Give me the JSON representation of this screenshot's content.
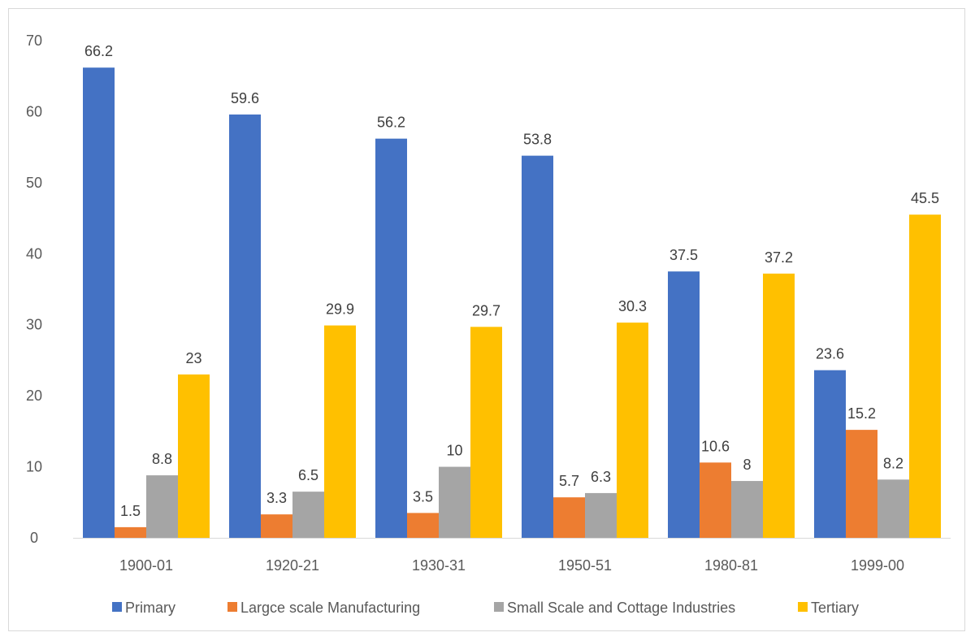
{
  "chart_data": {
    "type": "bar",
    "title": "",
    "xlabel": "",
    "ylabel": "",
    "categories": [
      "1900-01",
      "1920-21",
      "1930-31",
      "1950-51",
      "1980-81",
      "1999-00"
    ],
    "series": [
      {
        "name": "Primary",
        "color": "#4472C4",
        "values": [
          66.2,
          59.6,
          56.2,
          53.8,
          37.5,
          23.6
        ]
      },
      {
        "name": "Largce scale Manufacturing",
        "color": "#ED7D31",
        "values": [
          1.5,
          3.3,
          3.5,
          5.7,
          10.6,
          15.2
        ]
      },
      {
        "name": "Small Scale and Cottage Industries",
        "color": "#A5A5A5",
        "values": [
          8.8,
          6.5,
          10,
          6.3,
          8,
          8.2
        ]
      },
      {
        "name": "Tertiary",
        "color": "#FFC000",
        "values": [
          23,
          29.9,
          29.7,
          30.3,
          37.2,
          45.5
        ]
      }
    ],
    "ylim": [
      0,
      70
    ],
    "yticks": [
      0,
      10,
      20,
      30,
      40,
      50,
      60,
      70
    ],
    "grid": false,
    "legend_position": "bottom"
  }
}
